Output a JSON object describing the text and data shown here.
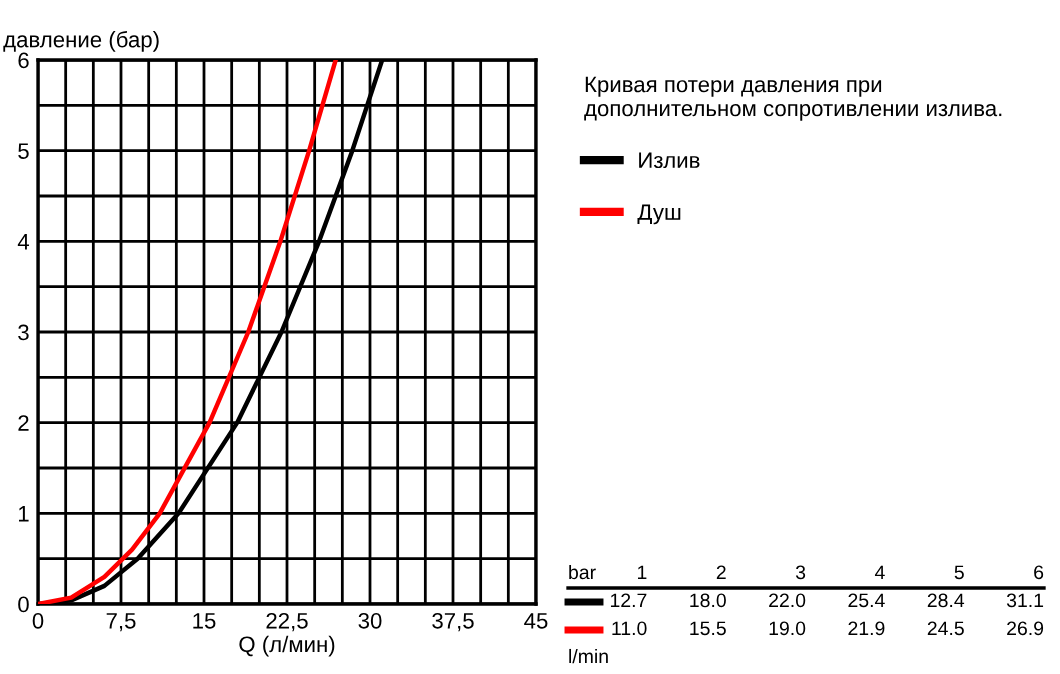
{
  "chart_data": {
    "type": "line",
    "legend_title": "Кривая потери давления при\nдополнительном сопротивлении излива.",
    "xlabel": "Q (л/мин)",
    "ylabel": "давление (бар)",
    "xlim": [
      0,
      45
    ],
    "ylim": [
      0,
      6
    ],
    "xticks": [
      0,
      {
        "value": 2.5,
        "label": null
      },
      {
        "value": 5,
        "label": null
      },
      {
        "value": 7.5,
        "label": "7,5"
      },
      {
        "value": 10,
        "label": null
      },
      {
        "value": 12.5,
        "label": null
      },
      15,
      {
        "value": 17.5,
        "label": null
      },
      {
        "value": 20,
        "label": null
      },
      {
        "value": 22.5,
        "label": "22,5"
      },
      {
        "value": 25,
        "label": null
      },
      {
        "value": 27.5,
        "label": null
      },
      30,
      {
        "value": 32.5,
        "label": null
      },
      {
        "value": 35,
        "label": null
      },
      {
        "value": 37.5,
        "label": "37,5"
      },
      {
        "value": 40,
        "label": null
      },
      {
        "value": 42.5,
        "label": null
      },
      45
    ],
    "yticks": [
      0,
      {
        "value": 0.5,
        "label": null
      },
      1,
      {
        "value": 1.5,
        "label": null
      },
      2,
      {
        "value": 2.5,
        "label": null
      },
      3,
      {
        "value": 3.5,
        "label": null
      },
      4,
      {
        "value": 4.5,
        "label": null
      },
      5,
      {
        "value": 5.5,
        "label": null
      },
      6
    ],
    "grid": true,
    "legend": "right",
    "marker": "none",
    "line_style": "solid",
    "series": [
      {
        "name": "Излив",
        "color": "#000000",
        "x": [
          0,
          3,
          6,
          9,
          12.7,
          18.0,
          22.0,
          25.4,
          28.4,
          31.1
        ],
        "values": [
          0,
          0.04,
          0.2,
          0.5,
          1,
          2,
          3,
          4,
          5,
          6
        ]
      },
      {
        "name": "Душ",
        "color": "#ff0000",
        "x": [
          0,
          3,
          6,
          8.5,
          11.0,
          15.5,
          19.0,
          21.9,
          24.5,
          26.9
        ],
        "values": [
          0,
          0.07,
          0.3,
          0.6,
          1,
          2,
          3,
          4,
          5,
          6
        ]
      }
    ],
    "annotations": [
      "bar",
      "1",
      "2",
      "3",
      "4",
      "5",
      "6",
      "12.7",
      "18.0",
      "22.0",
      "25.4",
      "28.4",
      "31.1",
      "11.0",
      "15.5",
      "19.0",
      "21.9",
      "24.5",
      "26.9",
      "l/min"
    ]
  }
}
